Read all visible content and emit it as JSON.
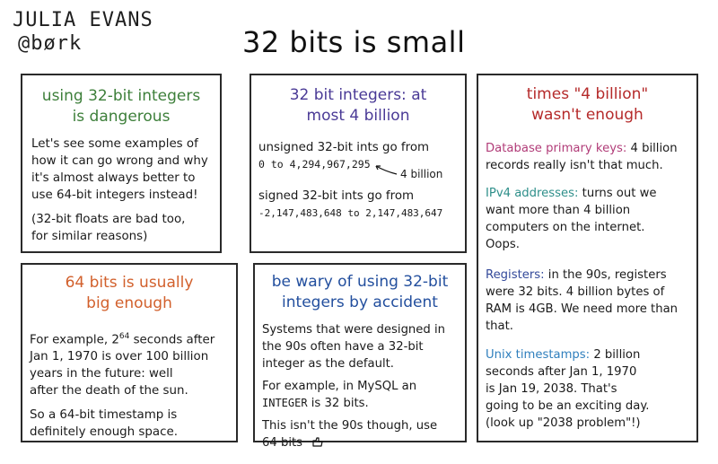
{
  "author": {
    "name": "JULIA EVANS",
    "handle": "@børk"
  },
  "title": "32 bits is small",
  "colors": {
    "green": "#3d7f3a",
    "purple": "#4a3a96",
    "red": "#b52a2a",
    "orange": "#d2602c",
    "blue": "#234f9e",
    "pink": "#b13c78",
    "teal": "#2e8f8a",
    "navy": "#33499a",
    "light_blue": "#2f7fbd"
  },
  "p1": {
    "title": [
      "using 32-bit integers",
      "is dangerous"
    ],
    "lines": [
      "Let's see some examples of",
      "how it can go wrong and why",
      "it's almost always better to",
      "use 64-bit integers instead!"
    ],
    "note": [
      "(32-bit floats are bad too,",
      "for similar reasons)"
    ]
  },
  "p2": {
    "title": [
      "32 bit integers: at",
      "most 4 billion"
    ],
    "unsigned_label": "unsigned 32-bit ints go from",
    "unsigned_range": "0 to 4,294,967,295",
    "annotation": "4 billion",
    "signed_label": "signed 32-bit ints go from",
    "signed_range": "-2,147,483,648 to 2,147,483,647"
  },
  "p3": {
    "title": [
      "times \"4 billion\"",
      "wasn't enough"
    ],
    "db": {
      "label": "Database primary keys:",
      "text1": " 4 billion",
      "text2": "records really isn't that much."
    },
    "ipv4": {
      "label": "IPv4 addresses:",
      "text1": " turns out we",
      "lines": [
        "want more than 4 billion",
        "computers on the internet.",
        "Oops."
      ]
    },
    "registers": {
      "label": "Registers:",
      "text1": " in the 90s, registers",
      "lines": [
        "were 32 bits. 4 billion bytes of",
        "RAM is 4GB. We need more than",
        "that."
      ]
    },
    "unix": {
      "label": "Unix timestamps:",
      "text1": " 2 billion",
      "lines": [
        "seconds after Jan 1, 1970",
        "is Jan 19, 2038. That's",
        "going to be an exciting day.",
        "(look up \"2038 problem\"!)"
      ]
    }
  },
  "p4": {
    "title": [
      "64 bits is usually",
      "big enough"
    ],
    "line1_pre": "For example, 2",
    "line1_sup": "64",
    "line1_post": " seconds after",
    "lines": [
      "Jan 1, 1970 is over 100 billion",
      "years in the future: well",
      "after the death of the sun."
    ],
    "note": [
      "So a 64-bit timestamp is",
      "definitely enough space."
    ]
  },
  "p5": {
    "title": [
      "be wary of using 32-bit",
      "integers by accident"
    ],
    "lines": [
      "Systems that were designed in",
      "the 90s often have a 32-bit",
      "integer as the default."
    ],
    "ex_line1": "For example, in MySQL an",
    "ex_code": "INTEGER",
    "ex_rest": " is 32 bits.",
    "last": [
      "This isn't the 90s though, use",
      "64 bits"
    ]
  }
}
